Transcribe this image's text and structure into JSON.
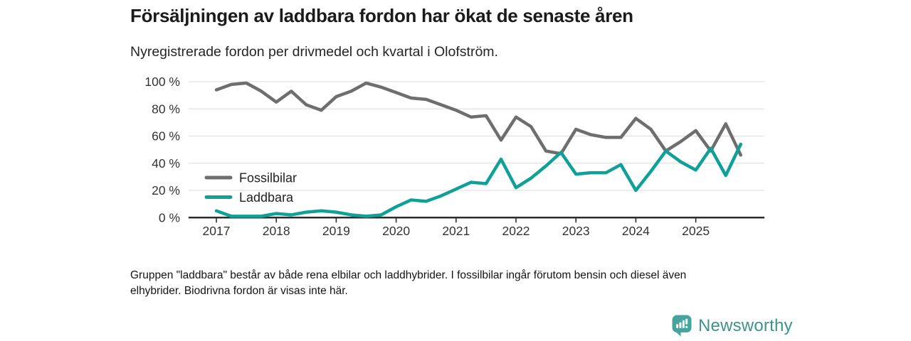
{
  "header": {
    "title": "Försäljningen av laddbara fordon har ökat de senaste åren",
    "subtitle": "Nyregistrerade fordon per drivmedel och kvartal i Olofström."
  },
  "chart_data": {
    "type": "line",
    "title": "Försäljningen av laddbara fordon har ökat de senaste åren",
    "subtitle": "Nyregistrerade fordon per drivmedel och kvartal i Olofström.",
    "unit": "%",
    "ylim": [
      0,
      100
    ],
    "grid": "horizontal",
    "legend_position": "inside-left",
    "y_ticks": [
      0,
      20,
      40,
      60,
      80,
      100
    ],
    "y_tick_labels": [
      "0 %",
      "20 %",
      "40 %",
      "60 %",
      "80 %",
      "100 %"
    ],
    "x_tick_labels": [
      "2017",
      "2018",
      "2019",
      "2020",
      "2021",
      "2022",
      "2023",
      "2024",
      "2025"
    ],
    "categories": [
      "2017 Q1",
      "2017 Q2",
      "2017 Q3",
      "2017 Q4",
      "2018 Q1",
      "2018 Q2",
      "2018 Q3",
      "2018 Q4",
      "2019 Q1",
      "2019 Q2",
      "2019 Q3",
      "2019 Q4",
      "2020 Q1",
      "2020 Q2",
      "2020 Q3",
      "2020 Q4",
      "2021 Q1",
      "2021 Q2",
      "2021 Q3",
      "2021 Q4",
      "2022 Q1",
      "2022 Q2",
      "2022 Q3",
      "2022 Q4",
      "2023 Q1",
      "2023 Q2",
      "2023 Q3",
      "2023 Q4",
      "2024 Q1",
      "2024 Q2",
      "2024 Q3",
      "2024 Q4",
      "2025 Q1",
      "2025 Q2",
      "2025 Q3",
      "2025 Q4"
    ],
    "series": [
      {
        "name": "Fossilbilar",
        "color": "#6e6e6e",
        "values": [
          94,
          98,
          99,
          93,
          85,
          93,
          83,
          79,
          89,
          93,
          99,
          96,
          92,
          88,
          87,
          83,
          79,
          74,
          75,
          57,
          74,
          67,
          49,
          47,
          65,
          61,
          59,
          59,
          73,
          65,
          49,
          56,
          64,
          49,
          69,
          46
        ]
      },
      {
        "name": "Laddbara",
        "color": "#0fa098",
        "values": [
          5,
          1,
          1,
          1,
          3,
          2,
          4,
          5,
          4,
          2,
          1,
          2,
          8,
          13,
          12,
          16,
          21,
          26,
          25,
          43,
          22,
          29,
          38,
          48,
          32,
          33,
          33,
          39,
          20,
          34,
          49,
          41,
          35,
          51,
          31,
          54
        ]
      }
    ]
  },
  "footnote": {
    "line1": "Gruppen \"laddbara\" består av både rena elbilar och laddhybrider. I fossilbilar ingår förutom bensin och diesel även",
    "line2": "elhybrider. Biodrivna fordon är visas inte här."
  },
  "branding": {
    "name": "Newsworthy",
    "icon": "bar-chart-speech-pin-icon",
    "icon_color": "#45a49b",
    "text_color": "#3b948d"
  },
  "colors": {
    "grid": "#dcdcdc",
    "axis": "#2d2d2d",
    "tick_label": "#333333"
  }
}
